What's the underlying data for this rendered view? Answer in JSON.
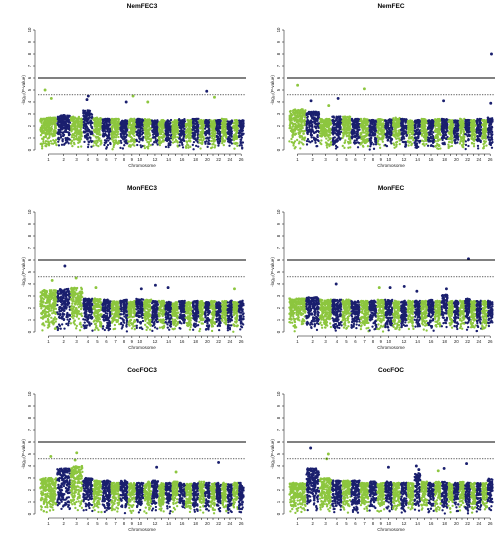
{
  "figure": {
    "chromosome_count": 26,
    "colors": {
      "odd_chromosome": "#8dc63f",
      "even_chromosome": "#1a1f6e",
      "axis": "#000000"
    }
  },
  "chart_data": [
    {
      "type": "scatter",
      "title": "NemFEC3",
      "xlabel": "Chromosome",
      "ylabel": "-log₁₀(P-value)",
      "ylim": [
        0,
        10
      ],
      "yticks": [
        0,
        1,
        2,
        3,
        4,
        5,
        6,
        7,
        8,
        9,
        10
      ],
      "xticks": [
        "1",
        "2",
        "3",
        "4",
        "5",
        "6",
        "7",
        "8",
        "9",
        "10",
        "12",
        "14",
        "16",
        "18",
        "20",
        "22",
        "24",
        "26"
      ],
      "thresholds": {
        "solid": 6.0,
        "dotted": 4.6
      },
      "base_top": [
        2.7,
        2.9,
        2.8,
        3.3,
        2.7,
        2.6,
        2.6,
        2.5,
        2.6,
        2.6,
        2.6,
        2.5,
        2.5,
        2.5,
        2.5,
        2.6,
        2.5,
        2.6,
        2.5,
        2.5,
        2.5,
        2.5,
        2.6,
        2.5,
        2.5,
        2.5
      ],
      "highlights": [
        {
          "chromosome": 1,
          "value": 5.0
        },
        {
          "chromosome": 1,
          "value": 4.3
        },
        {
          "chromosome": 4,
          "value": 4.5
        },
        {
          "chromosome": 4,
          "value": 4.2
        },
        {
          "chromosome": 8,
          "value": 4.0
        },
        {
          "chromosome": 9,
          "value": 4.5
        },
        {
          "chromosome": 11,
          "value": 4.0
        },
        {
          "chromosome": 20,
          "value": 4.9
        },
        {
          "chromosome": 21,
          "value": 4.4
        }
      ]
    },
    {
      "type": "scatter",
      "title": "NemFEC",
      "xlabel": "Chromosome",
      "ylabel": "-log₁₀(P-value)",
      "ylim": [
        0,
        10
      ],
      "yticks": [
        0,
        1,
        2,
        3,
        4,
        5,
        6,
        7,
        8,
        9,
        10
      ],
      "xticks": [
        "1",
        "2",
        "3",
        "4",
        "5",
        "6",
        "7",
        "8",
        "9",
        "10",
        "12",
        "14",
        "16",
        "18",
        "20",
        "22",
        "24",
        "26"
      ],
      "thresholds": {
        "solid": 6.0,
        "dotted": 4.6
      },
      "base_top": [
        3.4,
        3.2,
        2.6,
        2.8,
        2.8,
        2.6,
        2.6,
        2.5,
        2.6,
        2.6,
        2.7,
        2.6,
        2.5,
        2.5,
        2.6,
        2.5,
        2.6,
        2.6,
        2.5,
        2.5,
        2.6,
        2.5,
        2.5,
        2.6,
        2.5,
        2.7
      ],
      "highlights": [
        {
          "chromosome": 1,
          "value": 5.4
        },
        {
          "chromosome": 2,
          "value": 4.1
        },
        {
          "chromosome": 3,
          "value": 3.7
        },
        {
          "chromosome": 4,
          "value": 4.3
        },
        {
          "chromosome": 7,
          "value": 5.1
        },
        {
          "chromosome": 18,
          "value": 4.1
        },
        {
          "chromosome": 26,
          "value": 8.0
        },
        {
          "chromosome": 26,
          "value": 3.9
        }
      ]
    },
    {
      "type": "scatter",
      "title": "MonFEC3",
      "xlabel": "Chromosome",
      "ylabel": "-log₁₀(P-value)",
      "ylim": [
        0,
        10
      ],
      "yticks": [
        0,
        1,
        2,
        3,
        4,
        5,
        6,
        7,
        8,
        9,
        10
      ],
      "xticks": [
        "1",
        "2",
        "3",
        "4",
        "5",
        "6",
        "7",
        "8",
        "9",
        "10",
        "12",
        "14",
        "16",
        "18",
        "20",
        "22",
        "24",
        "26"
      ],
      "thresholds": {
        "solid": 6.0,
        "dotted": 4.6
      },
      "base_top": [
        3.5,
        3.6,
        3.7,
        2.8,
        2.8,
        2.7,
        2.6,
        2.7,
        2.6,
        2.8,
        2.7,
        2.6,
        2.6,
        2.6,
        2.5,
        2.6,
        2.5,
        2.6,
        2.6,
        2.5,
        2.6,
        2.5,
        2.6,
        2.6,
        2.5,
        2.6
      ],
      "highlights": [
        {
          "chromosome": 1,
          "value": 4.3
        },
        {
          "chromosome": 2,
          "value": 5.5
        },
        {
          "chromosome": 3,
          "value": 4.5
        },
        {
          "chromosome": 5,
          "value": 3.7
        },
        {
          "chromosome": 10,
          "value": 3.6
        },
        {
          "chromosome": 12,
          "value": 3.9
        },
        {
          "chromosome": 14,
          "value": 3.7
        },
        {
          "chromosome": 25,
          "value": 3.6
        }
      ]
    },
    {
      "type": "scatter",
      "title": "MonFEC",
      "xlabel": "Chromosome",
      "ylabel": "-log₁₀(P-value)",
      "ylim": [
        0,
        10
      ],
      "yticks": [
        0,
        1,
        2,
        3,
        4,
        5,
        6,
        7,
        8,
        9,
        10
      ],
      "xticks": [
        "1",
        "2",
        "3",
        "4",
        "5",
        "6",
        "7",
        "8",
        "9",
        "10",
        "12",
        "14",
        "16",
        "18",
        "20",
        "22",
        "24",
        "26"
      ],
      "thresholds": {
        "solid": 6.0,
        "dotted": 4.6
      },
      "base_top": [
        2.8,
        2.9,
        2.7,
        2.7,
        2.7,
        2.6,
        2.6,
        2.6,
        2.7,
        2.7,
        2.6,
        2.6,
        2.6,
        2.6,
        2.6,
        2.7,
        2.6,
        3.1,
        2.6,
        2.6,
        2.6,
        2.8,
        2.6,
        2.6,
        2.6,
        2.6
      ],
      "highlights": [
        {
          "chromosome": 4,
          "value": 4.0
        },
        {
          "chromosome": 9,
          "value": 3.7
        },
        {
          "chromosome": 10,
          "value": 3.7
        },
        {
          "chromosome": 12,
          "value": 3.8
        },
        {
          "chromosome": 14,
          "value": 3.4
        },
        {
          "chromosome": 18,
          "value": 3.6
        },
        {
          "chromosome": 22,
          "value": 6.1
        }
      ]
    },
    {
      "type": "scatter",
      "title": "CocFOC3",
      "xlabel": "Chromosome",
      "ylabel": "-log₁₀(P-value)",
      "ylim": [
        0,
        10
      ],
      "yticks": [
        0,
        1,
        2,
        3,
        4,
        5,
        6,
        7,
        8,
        9,
        10
      ],
      "xticks": [
        "1",
        "2",
        "3",
        "4",
        "5",
        "6",
        "7",
        "8",
        "9",
        "10",
        "12",
        "14",
        "16",
        "18",
        "20",
        "22",
        "24",
        "26"
      ],
      "thresholds": {
        "solid": 6.0,
        "dotted": 4.6
      },
      "base_top": [
        3.0,
        3.8,
        4.0,
        3.0,
        2.8,
        2.8,
        2.6,
        2.8,
        2.6,
        2.6,
        2.7,
        2.8,
        2.6,
        2.6,
        2.7,
        2.6,
        2.6,
        2.6,
        2.7,
        2.6,
        2.6,
        2.6,
        2.6,
        2.5,
        2.6,
        2.6
      ],
      "highlights": [
        {
          "chromosome": 1,
          "value": 4.8
        },
        {
          "chromosome": 3,
          "value": 5.1
        },
        {
          "chromosome": 3,
          "value": 4.5
        },
        {
          "chromosome": 12,
          "value": 3.9
        },
        {
          "chromosome": 15,
          "value": 3.5
        },
        {
          "chromosome": 22,
          "value": 4.3
        }
      ]
    },
    {
      "type": "scatter",
      "title": "CocFOC",
      "xlabel": "Chromosome",
      "ylabel": "-log₁₀(P-value)",
      "ylim": [
        0,
        10
      ],
      "yticks": [
        0,
        1,
        2,
        3,
        4,
        5,
        6,
        7,
        8,
        9,
        10
      ],
      "xticks": [
        "1",
        "2",
        "3",
        "4",
        "5",
        "6",
        "7",
        "8",
        "9",
        "10",
        "12",
        "14",
        "16",
        "18",
        "20",
        "22",
        "24",
        "26"
      ],
      "thresholds": {
        "solid": 6.0,
        "dotted": 4.6
      },
      "base_top": [
        2.6,
        3.8,
        3.0,
        2.8,
        2.8,
        2.8,
        2.6,
        2.8,
        2.6,
        2.7,
        2.6,
        2.6,
        2.6,
        3.4,
        2.7,
        2.6,
        2.7,
        2.7,
        2.6,
        2.6,
        2.7,
        2.7,
        2.6,
        2.6,
        2.6,
        3.0
      ],
      "highlights": [
        {
          "chromosome": 2,
          "value": 5.5
        },
        {
          "chromosome": 3,
          "value": 5.0
        },
        {
          "chromosome": 3,
          "value": 4.6
        },
        {
          "chromosome": 10,
          "value": 3.9
        },
        {
          "chromosome": 14,
          "value": 4.0
        },
        {
          "chromosome": 14,
          "value": 3.7
        },
        {
          "chromosome": 17,
          "value": 3.6
        },
        {
          "chromosome": 18,
          "value": 3.8
        },
        {
          "chromosome": 22,
          "value": 4.2
        }
      ]
    }
  ]
}
